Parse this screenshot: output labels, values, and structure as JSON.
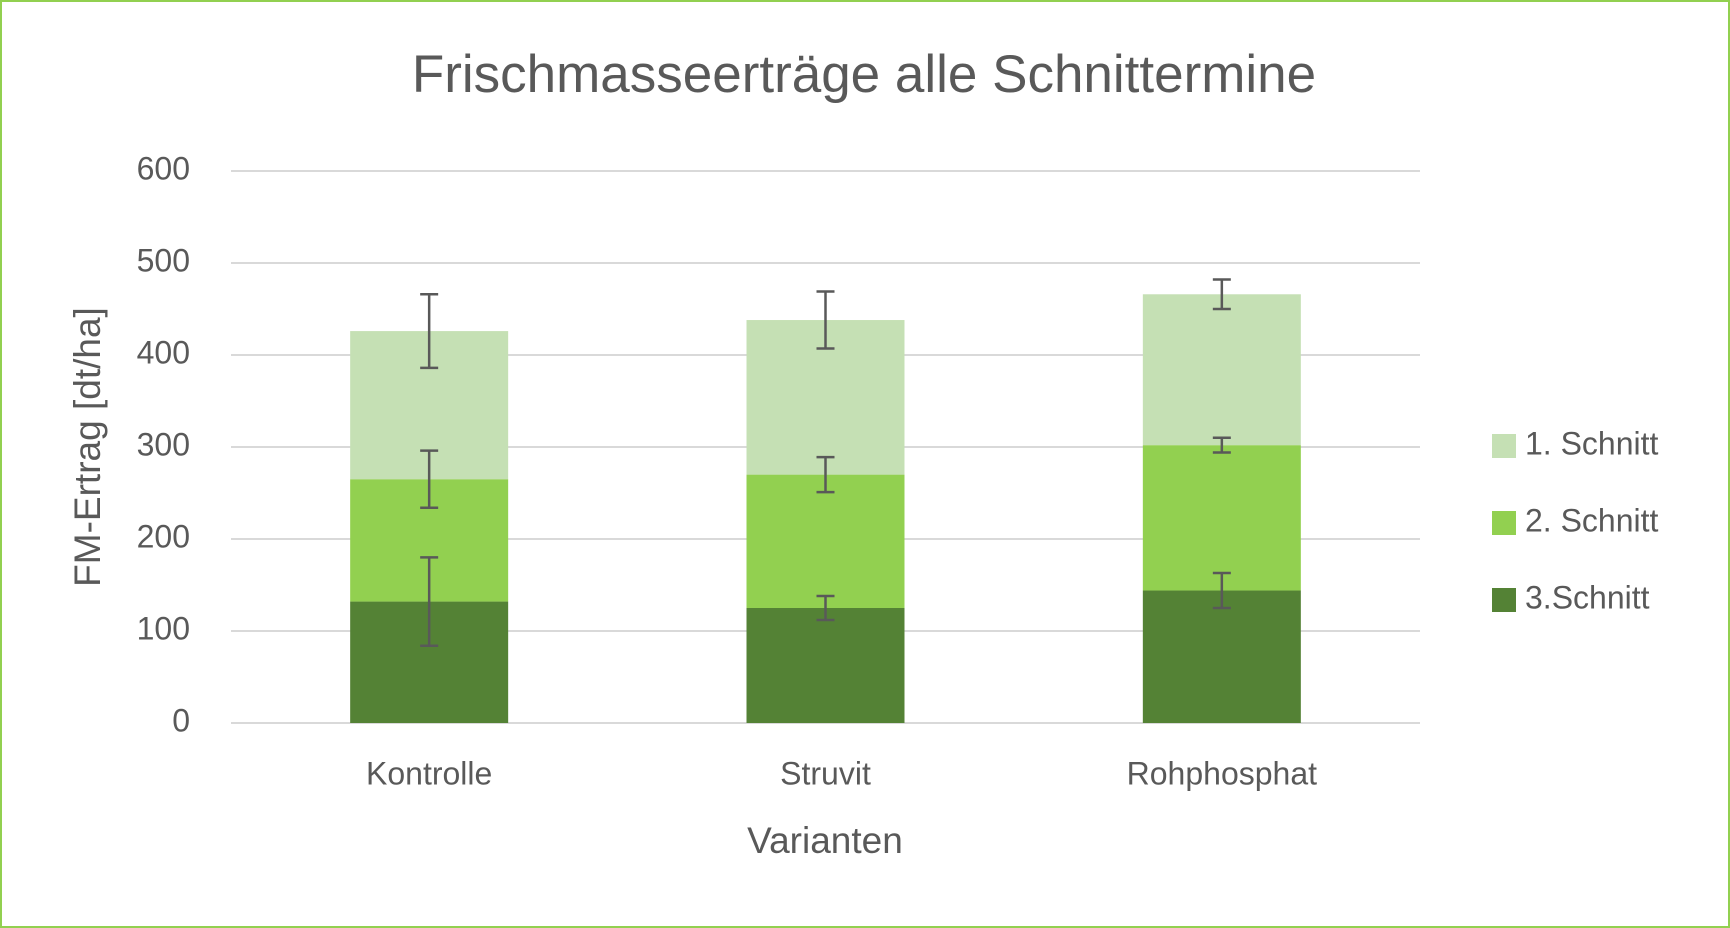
{
  "chart_data": {
    "type": "stacked_bar",
    "title": "Frischmasseerträge alle Schnittermine",
    "x_label": "Varianten",
    "y_label": "FM-Ertrag [dt/ha]",
    "categories": [
      "Kontrolle",
      "Struvit",
      "Rohphosphat"
    ],
    "series": [
      {
        "name": "3.Schnitt",
        "color": "#548235",
        "values": [
          132,
          125,
          144
        ],
        "errors": [
          48,
          13,
          19
        ]
      },
      {
        "name": "2. Schnitt",
        "color": "#92d050",
        "values": [
          133,
          145,
          158
        ],
        "errors": [
          31,
          19,
          8
        ]
      },
      {
        "name": "1. Schnitt",
        "color": "#c5e0b4",
        "values": [
          161,
          168,
          164
        ],
        "errors": [
          40,
          31,
          16
        ]
      }
    ],
    "ylim": [
      0,
      600
    ],
    "yticks": [
      0,
      100,
      200,
      300,
      400,
      500,
      600
    ],
    "grid": true,
    "legend": "right"
  }
}
